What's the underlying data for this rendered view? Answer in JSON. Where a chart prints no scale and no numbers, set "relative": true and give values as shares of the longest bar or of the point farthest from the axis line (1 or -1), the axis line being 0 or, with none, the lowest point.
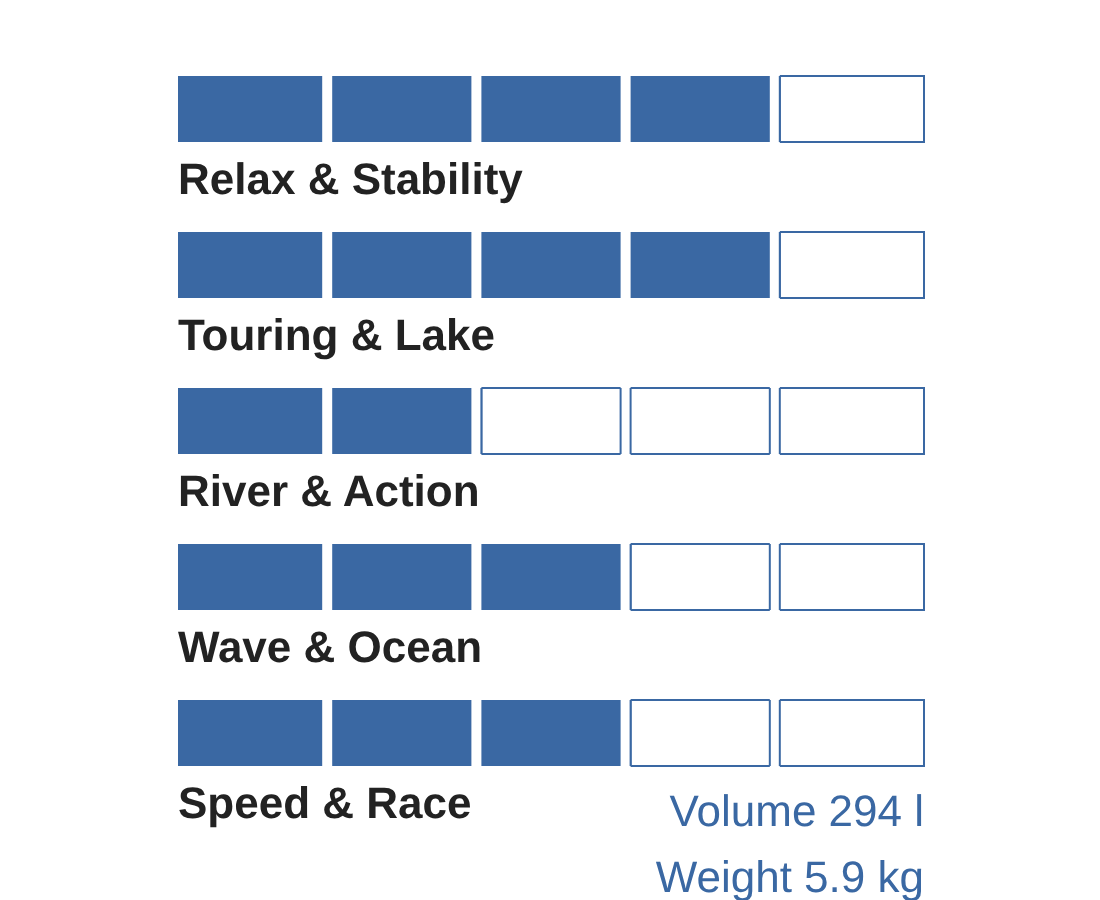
{
  "chart_data": {
    "type": "bar",
    "orientation": "horizontal",
    "stacked": true,
    "relative": true,
    "categories": [
      "Relax & Stability",
      "Touring & Lake",
      "River & Action",
      "Wave & Ocean",
      "Speed & Race"
    ],
    "series": [
      {
        "color": "#3a68a3",
        "values": [
          0.8,
          0.8,
          0.4,
          0.6,
          0.6
        ]
      },
      {
        "color": "#ffffff",
        "values": [
          0.2,
          0.2,
          0.6,
          0.4,
          0.4
        ]
      }
    ],
    "annotations": [
      "Volume 294 l",
      "Weight 5.9 kg"
    ]
  }
}
